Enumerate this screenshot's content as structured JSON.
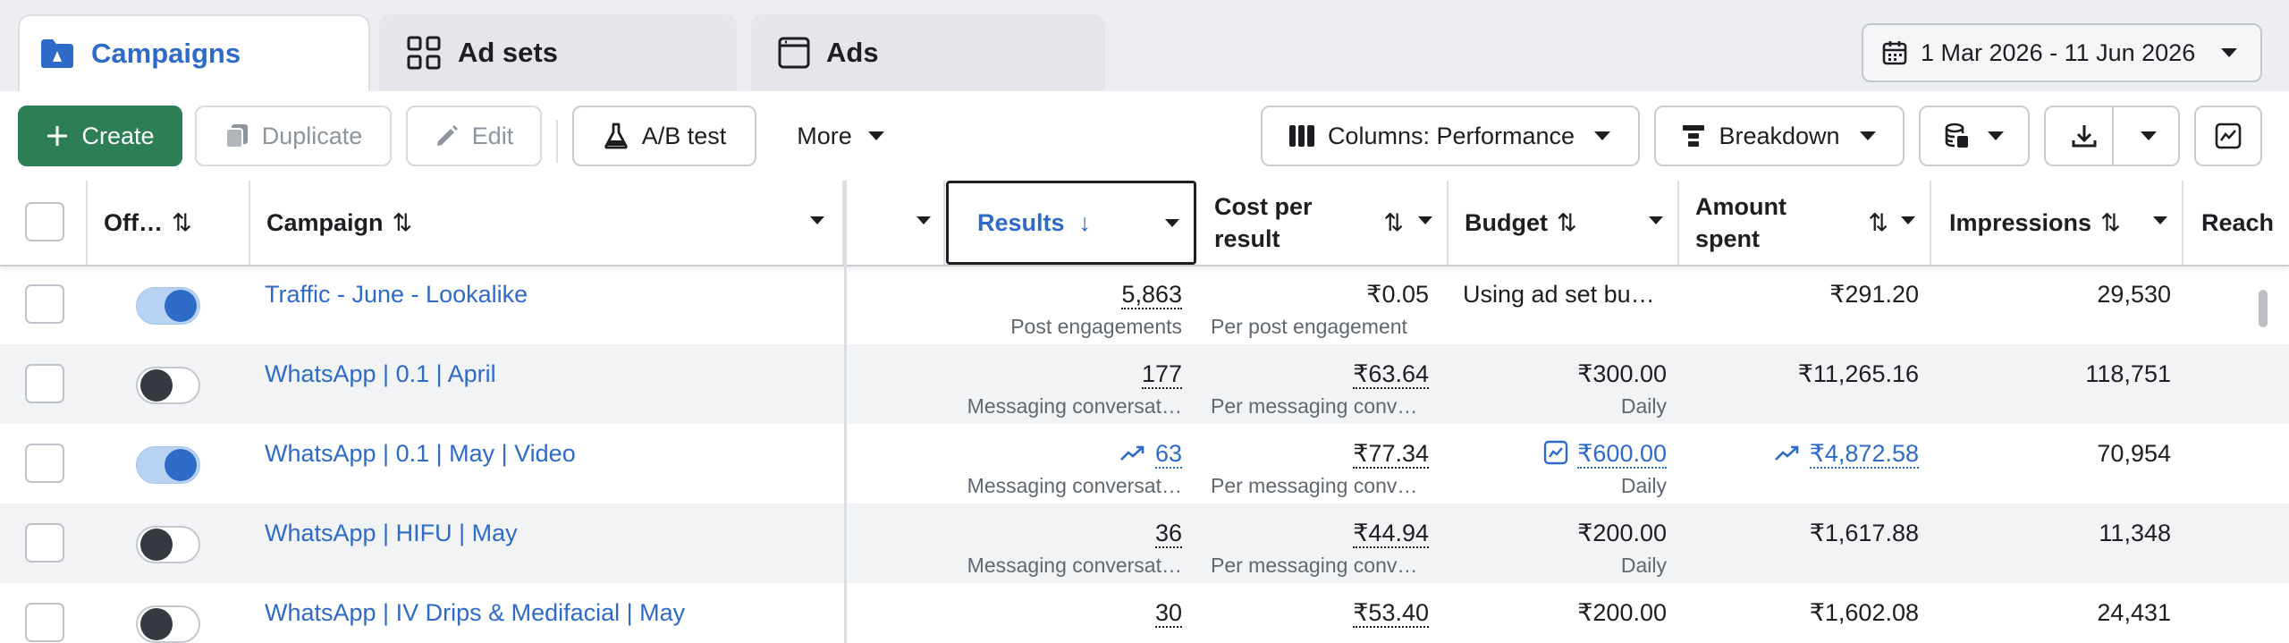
{
  "tabs": [
    {
      "label": "Campaigns"
    },
    {
      "label": "Ad sets"
    },
    {
      "label": "Ads"
    }
  ],
  "date_range": "1 Mar 2026 - 11 Jun 2026",
  "toolbar": {
    "create": "Create",
    "duplicate": "Duplicate",
    "edit": "Edit",
    "ab_test": "A/B test",
    "more": "More",
    "columns": "Columns: Performance",
    "breakdown": "Breakdown"
  },
  "columns": {
    "off": "Off…",
    "campaign": "Campaign",
    "results": "Results",
    "cost_per_result": [
      "Cost per",
      "result"
    ],
    "budget": "Budget",
    "amount_spent": [
      "Amount",
      "spent"
    ],
    "impressions": "Impressions",
    "reach": "Reach"
  },
  "rows": [
    {
      "name": "Traffic - June - Lookalike",
      "on": true,
      "results": "5,863",
      "results_sub": "Post engagements",
      "results_trend": false,
      "cpr": "₹0.05",
      "cpr_sub": "Per post engagement",
      "cpr_dotted": false,
      "budget": "Using ad set bu…",
      "budget_sub": "",
      "budget_trend": false,
      "spent": "₹291.20",
      "spent_trend": false,
      "impressions": "29,530"
    },
    {
      "name": "WhatsApp | 0.1 | April",
      "on": false,
      "results": "177",
      "results_sub": "Messaging conversat…",
      "results_trend": false,
      "cpr": "₹63.64",
      "cpr_sub": "Per messaging conve…",
      "cpr_dotted": true,
      "budget": "₹300.00",
      "budget_sub": "Daily",
      "budget_trend": false,
      "spent": "₹11,265.16",
      "spent_trend": false,
      "impressions": "118,751"
    },
    {
      "name": "WhatsApp | 0.1 | May | Video",
      "on": true,
      "results": "63",
      "results_sub": "Messaging conversat…",
      "results_trend": true,
      "cpr": "₹77.34",
      "cpr_sub": "Per messaging conve…",
      "cpr_dotted": true,
      "budget": "₹600.00",
      "budget_sub": "Daily",
      "budget_trend": true,
      "spent": "₹4,872.58",
      "spent_trend": true,
      "impressions": "70,954"
    },
    {
      "name": "WhatsApp | HIFU | May",
      "on": false,
      "results": "36",
      "results_sub": "Messaging conversat…",
      "results_trend": false,
      "cpr": "₹44.94",
      "cpr_sub": "Per messaging conve…",
      "cpr_dotted": true,
      "budget": "₹200.00",
      "budget_sub": "Daily",
      "budget_trend": false,
      "spent": "₹1,617.88",
      "spent_trend": false,
      "impressions": "11,348"
    },
    {
      "name": "WhatsApp | IV Drips & Medifacial | May",
      "on": false,
      "results": "30",
      "results_sub": "",
      "results_trend": false,
      "cpr": "₹53.40",
      "cpr_sub": "",
      "cpr_dotted": true,
      "budget": "₹200.00",
      "budget_sub": "",
      "budget_trend": false,
      "spent": "₹1,602.08",
      "spent_trend": false,
      "impressions": "24,431"
    }
  ],
  "colors": {
    "accent": "#2e6ac7",
    "primary_button": "#2d7d57",
    "toggle_on": "#2e6ac7",
    "toggle_off_knob": "#343a40"
  }
}
